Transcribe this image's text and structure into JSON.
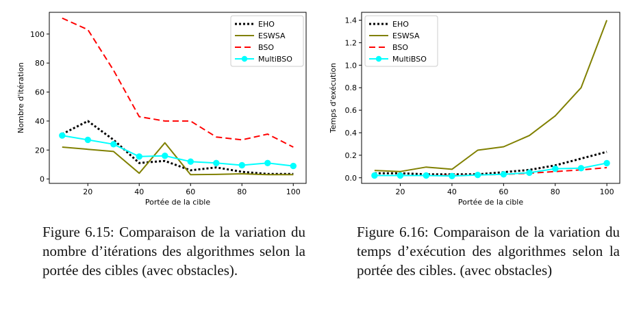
{
  "charts": [
    {
      "ylabel": "Nombre d'itération",
      "xlabel": "Portée de la cible",
      "caption": "Figure 6.15: Comparaison de la variation du nombre d’itérations des algorithmes selon la portée des cibles (avec obstacles)."
    },
    {
      "ylabel": "Temps d'exécution",
      "xlabel": "Portée de la cible",
      "caption": "Figure 6.16: Comparaison de la variation du temps d’exécution des algorithmes selon la portée des cibles. (avec obstacles)"
    }
  ],
  "styles": {
    "EHO": {
      "color": "#000000",
      "dash": "dotted"
    },
    "ESWSA": {
      "color": "#808000",
      "dash": "solid"
    },
    "BSO": {
      "color": "#ff0000",
      "dash": "dashed"
    },
    "MultiBSO": {
      "color": "#00ffff",
      "dash": "solid",
      "marker": "circle"
    }
  },
  "chart_data": [
    {
      "type": "line",
      "xlabel": "Portée de la cible",
      "ylabel": "Nombre d'itération",
      "x": [
        10,
        20,
        30,
        40,
        50,
        60,
        70,
        80,
        90,
        100
      ],
      "xticks": [
        20,
        40,
        60,
        80,
        100
      ],
      "yticks": [
        0,
        20,
        40,
        60,
        80,
        100
      ],
      "xlim": [
        5,
        105
      ],
      "ylim": [
        -3,
        115
      ],
      "grid": false,
      "legend_position": "top-right",
      "series": [
        {
          "name": "EHO",
          "values": [
            31,
            40,
            27,
            11,
            12.5,
            6,
            8,
            5,
            3.5,
            3.5
          ]
        },
        {
          "name": "ESWSA",
          "values": [
            22,
            20.5,
            19,
            4,
            25,
            3,
            3.2,
            3.6,
            3,
            3
          ]
        },
        {
          "name": "BSO",
          "values": [
            111,
            103,
            75,
            43,
            40,
            40,
            29,
            27,
            31,
            22
          ]
        },
        {
          "name": "MultiBSO",
          "values": [
            30,
            27,
            24,
            15.5,
            16,
            12,
            11,
            9.5,
            11,
            9
          ]
        }
      ]
    },
    {
      "type": "line",
      "xlabel": "Portée de la cible",
      "ylabel": "Temps d'exécution",
      "x": [
        10,
        20,
        30,
        40,
        50,
        60,
        70,
        80,
        90,
        100
      ],
      "xticks": [
        20,
        40,
        60,
        80,
        100
      ],
      "yticks": [
        0.0,
        0.2,
        0.4,
        0.6,
        0.8,
        1.0,
        1.2,
        1.4
      ],
      "xlim": [
        5,
        105
      ],
      "ylim": [
        -0.05,
        1.47
      ],
      "grid": false,
      "legend_position": "top-left",
      "series": [
        {
          "name": "EHO",
          "values": [
            0.04,
            0.04,
            0.03,
            0.03,
            0.03,
            0.05,
            0.07,
            0.11,
            0.17,
            0.23
          ]
        },
        {
          "name": "ESWSA",
          "values": [
            0.065,
            0.055,
            0.095,
            0.075,
            0.245,
            0.275,
            0.375,
            0.55,
            0.8,
            1.4
          ]
        },
        {
          "name": "BSO",
          "values": [
            0.02,
            0.02,
            0.02,
            0.02,
            0.025,
            0.03,
            0.04,
            0.055,
            0.07,
            0.09
          ]
        },
        {
          "name": "MultiBSO",
          "values": [
            0.02,
            0.02,
            0.02,
            0.015,
            0.025,
            0.03,
            0.045,
            0.08,
            0.085,
            0.13
          ]
        }
      ]
    }
  ]
}
